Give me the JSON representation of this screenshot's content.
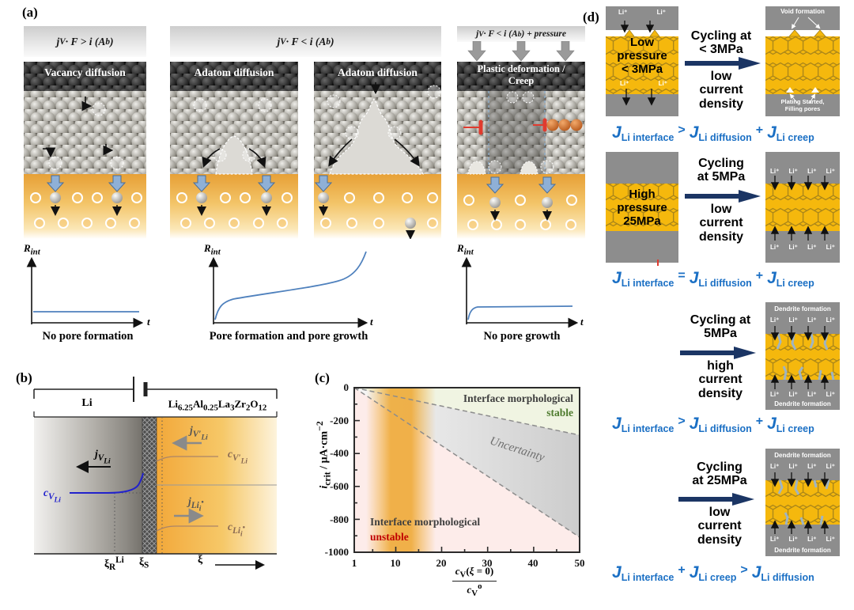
{
  "colors": {
    "equation_blue": "#1a6fc4",
    "navy_arrow": "#1b3564",
    "hex_yellow": "#F5B80D",
    "gray_electrode": "#8d8d8d",
    "stable_green": "#4e7b2e",
    "unstable_red": "#c00000",
    "electrolyte_orange": "#e8a137"
  },
  "panel_a": {
    "label": "(a)",
    "header1_html": "j<sub>V</sub> · F &gt; i (A<sub>b</sub>)",
    "header2_html": "j<sub>V</sub> · F &lt; i (A<sub>b</sub>)",
    "header3_html": "j<sub>V</sub> · F &lt; i (A<sub>b</sub>) + pressure",
    "title_vacancy": "Vacancy diffusion",
    "title_adatom": "Adatom diffusion",
    "title_plastic_html": "Plastic deformation /<br>Creep",
    "rint_html": "R<sub>int</sub>",
    "t_label": "t",
    "caption1": "No pore formation",
    "caption2": "Pore formation and pore growth",
    "caption3": "No pore growth"
  },
  "panel_b": {
    "label": "(b)",
    "left_electrode": "Li",
    "right_electrode_html": "Li<sub>6.25</sub>Al<sub>0.25</sub>La<sub>3</sub>Zr<sub>2</sub>O<sub>12</sub>",
    "j_v_html": "j<sub>V<sub>Li</sub></sub>",
    "c_v_html": "c<sub>V<sub>Li</sub></sub>",
    "j_vp_html": "j<sub>V′<sub>Li</sub></sub>",
    "c_vp_html": "c<sub>V′<sub>Li</sub></sub>",
    "j_i_html": "j<sub>Li<sub>i</sub><sup>•</sup></sub>",
    "c_i_html": "c<sub>Li<sub>i</sub><sup>•</sup></sub>",
    "xi_r_html": "ξ<sub>R</sub><sup>Li</sup>",
    "xi_s_html": "ξ<sub>S</sub>",
    "xi_axis": "ξ"
  },
  "panel_c": {
    "label": "(c)",
    "ylabel_html": "<i>i</i><sub>crit</sub> / μA·cm<sup>−2</sup>",
    "x_num_html": "<i>c</i><sub>V</sub>(<i>ξ</i> = 0)",
    "x_den_html": "<i>c</i><sub>V</sub><sup>o</sup>",
    "yticks": [
      "0",
      "-200",
      "-400",
      "-600",
      "-800",
      "-1000"
    ],
    "xticks": [
      "1",
      "10",
      "20",
      "30",
      "40",
      "50"
    ],
    "stable1": "Interface morphological",
    "stable2": "stable",
    "uncertainty": "Uncertainty",
    "unstable1": "Interface morphological",
    "unstable2": "unstable"
  },
  "panel_d": {
    "label": "(d)",
    "li_ion": "Li⁺",
    "dendrite_label": "Dendrite formation",
    "void_label": "Void formation",
    "plating_html": "Plating Started,<br>Filling pores",
    "row1": {
      "left_html": "Low<br>pressure<br>&lt; 3MPa",
      "cyc_top_html": "Cycling at<br>&lt; 3MPa",
      "cyc_bot_html": "low<br>current<br>density",
      "eq_html": "<i>J</i><sub>Li interface</sub><span class=op>&gt;</span><i>J</i><sub>Li diffusion</sub><span class=op>+</span><i>J</i><sub>Li creep</sub>"
    },
    "row2": {
      "left_html": "High<br>pressure<br>25MPa",
      "cyc_top_html": "Cycling<br>at 5MPa",
      "cyc_bot_html": "low<br>current<br>density",
      "eq_html": "<i>J</i><sub>Li interface</sub><span class=op>=</span><i>J</i><sub>Li diffusion</sub><span class=op>+</span><i>J</i><sub>Li creep</sub>"
    },
    "row3": {
      "cyc_top_html": "Cycling at<br>5MPa",
      "cyc_bot_html": "high<br>current<br>density",
      "eq_html": "<i>J</i><sub>Li interface</sub><span class=op>&gt;</span><i>J</i><sub>Li diffusion</sub><span class=op>+</span><i>J</i><sub>Li creep</sub>"
    },
    "row4": {
      "cyc_top_html": "Cycling<br>at 25MPa",
      "cyc_bot_html": "low<br>current<br>density",
      "eq_html": "<i>J</i><sub>Li interface</sub><span class=op>+</span><i>J</i><sub>Li creep</sub><span class=op>&gt;</span><i>J</i><sub>Li diffusion</sub>"
    }
  },
  "chart_data": [
    {
      "type": "line",
      "panel": "c",
      "title": "Critical current density stability map",
      "xlabel": "c_V(ξ = 0) / c_V^o",
      "ylabel": "i_crit / μA·cm⁻²",
      "xlim": [
        1,
        50
      ],
      "ylim": [
        -1000,
        0
      ],
      "grid": false,
      "series": [
        {
          "name": "stable boundary (dashed)",
          "x": [
            1,
            50
          ],
          "y": [
            0,
            -290
          ]
        },
        {
          "name": "unstable boundary (dashed)",
          "x": [
            1,
            50
          ],
          "y": [
            0,
            -910
          ]
        }
      ],
      "annotations": [
        "Interface morphological stable",
        "Uncertainty",
        "Interface morphological unstable"
      ]
    },
    {
      "type": "line",
      "panel": "a",
      "ylabel": "R_int",
      "xlabel": "t",
      "series": [
        {
          "name": "No pore formation",
          "trend": "constant low"
        },
        {
          "name": "Pore formation and pore growth",
          "trend": "monotonic increase, diverging at long t"
        },
        {
          "name": "No pore growth",
          "trend": "small initial rise then constant"
        }
      ]
    }
  ]
}
